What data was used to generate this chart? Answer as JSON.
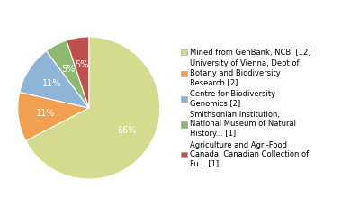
{
  "slices": [
    66,
    11,
    11,
    5,
    5
  ],
  "colors": [
    "#d4db8e",
    "#f0a050",
    "#8eb4d8",
    "#90b870",
    "#c0504d"
  ],
  "autopct_labels": [
    "66%",
    "11%",
    "11%",
    "5%",
    "5%"
  ],
  "legend_labels": [
    "Mined from GenBank, NCBI [12]",
    "University of Vienna, Dept of\nBotany and Biodiversity\nResearch [2]",
    "Centre for Biodiversity\nGenomics [2]",
    "Smithsonian Institution,\nNational Museum of Natural\nHistory... [1]",
    "Agriculture and Agri-Food\nCanada, Canadian Collection of\nFu... [1]"
  ],
  "startangle": 90,
  "counterclock": false,
  "text_color": "#ffffff",
  "font_size": 7,
  "legend_fontsize": 6,
  "figsize": [
    3.8,
    2.4
  ],
  "dpi": 100
}
